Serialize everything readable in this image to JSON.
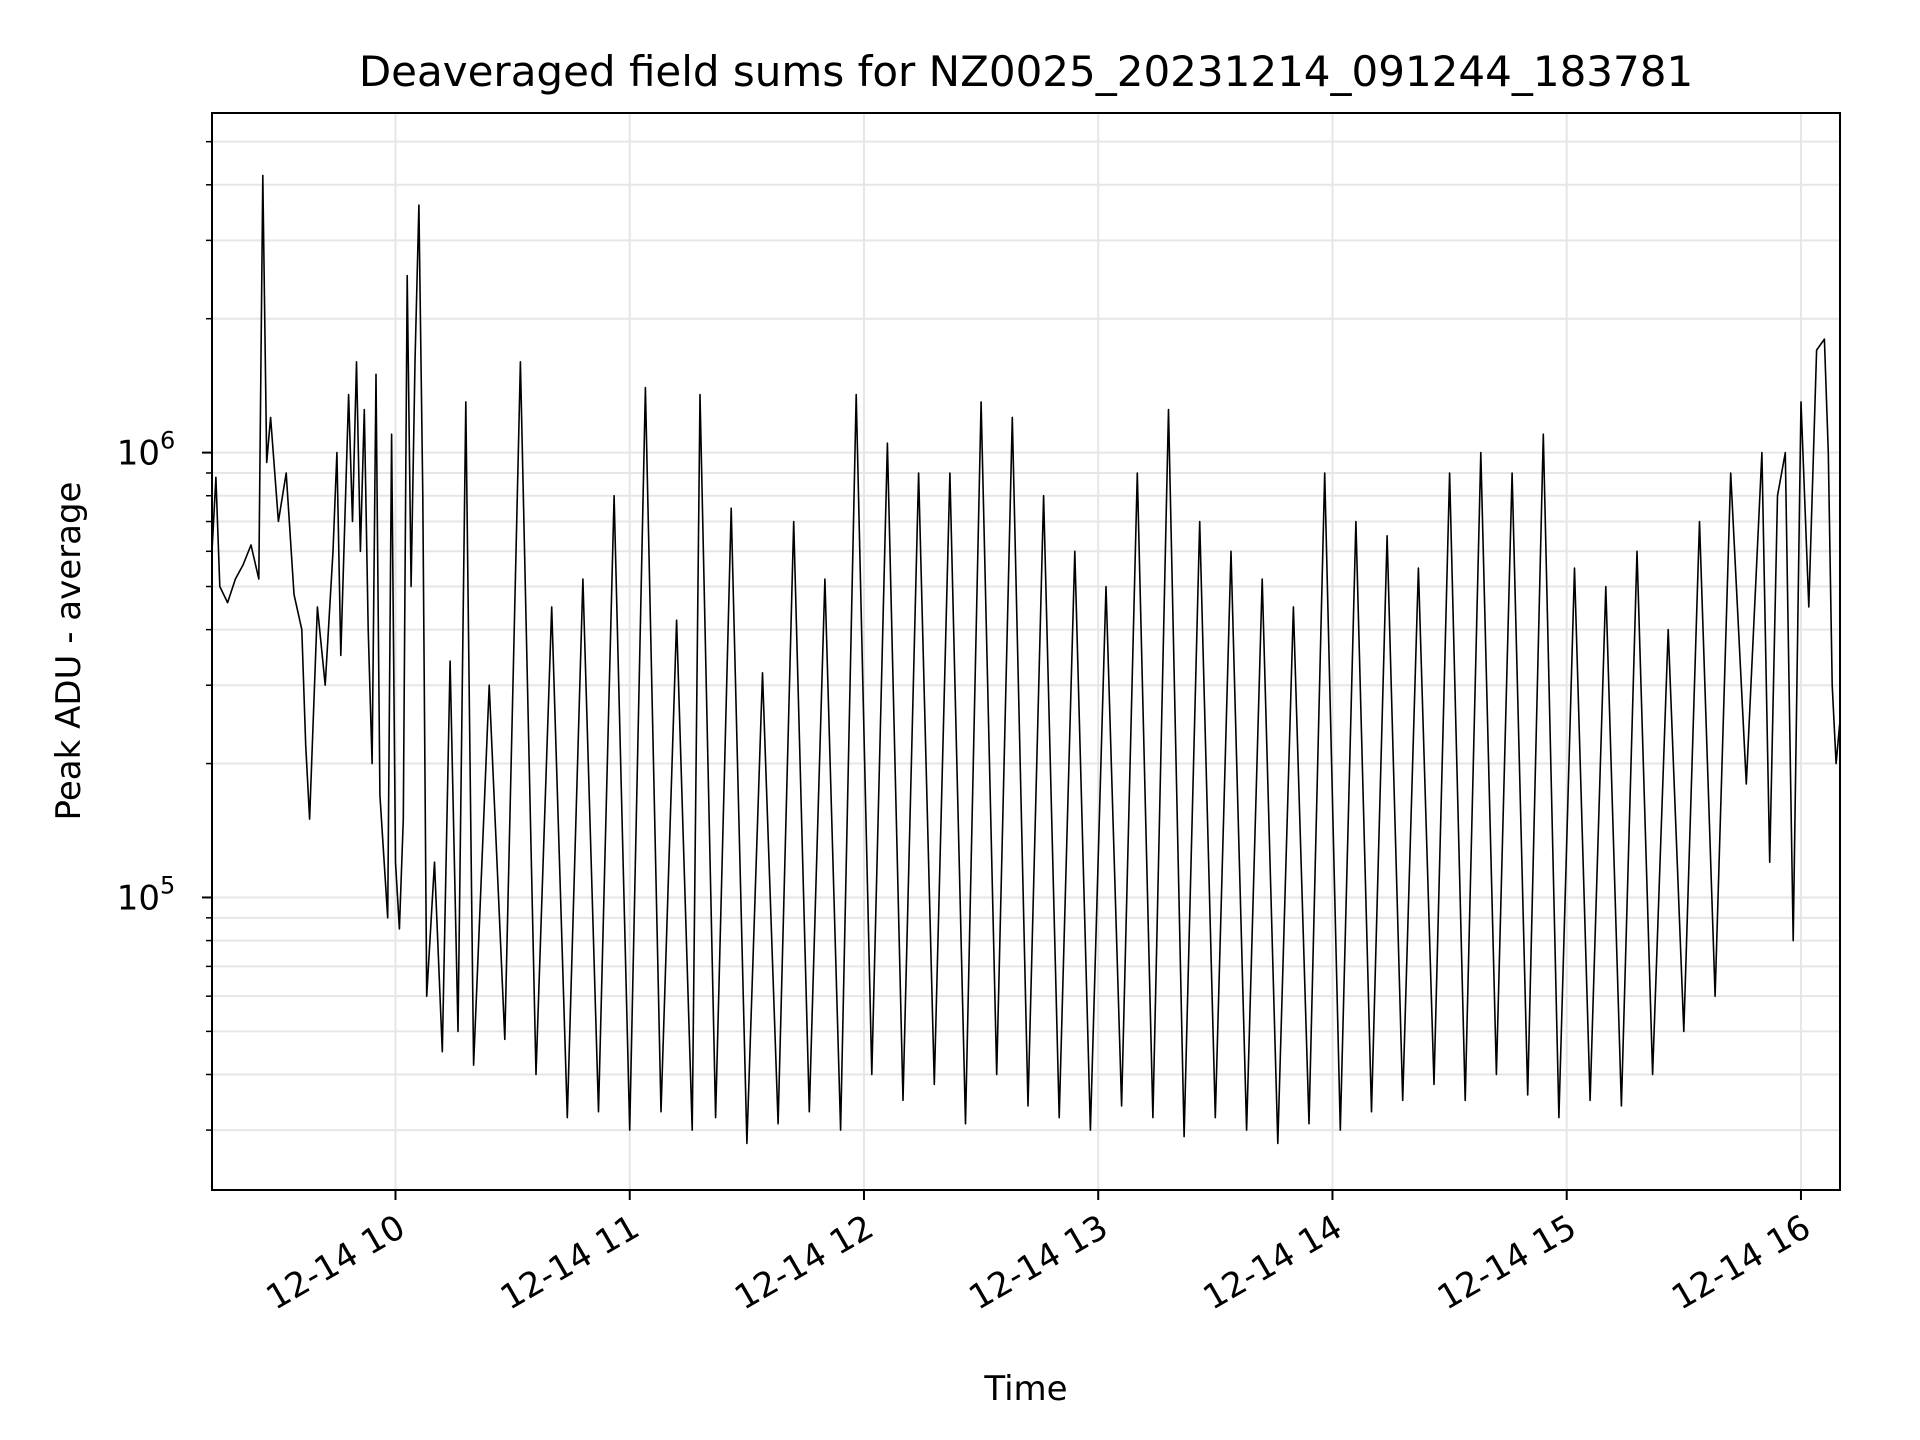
{
  "chart_data": {
    "type": "line",
    "title": "Deaveraged field sums for NZ0025_20231214_091244_183781",
    "xlabel": "Time",
    "ylabel": "Peak ADU - average",
    "yscale": "log",
    "ylim": [
      22000,
      5800000
    ],
    "xlim": [
      "12-14 09:13",
      "12-14 16:10"
    ],
    "grid": true,
    "line_color": "#000000",
    "grid_color": "#e6e6e6",
    "x_ticks": [
      "12-14 10",
      "12-14 11",
      "12-14 12",
      "12-14 13",
      "12-14 14",
      "12-14 15",
      "12-14 16"
    ],
    "y_ticks": [
      "10^6",
      "10^5"
    ],
    "series": [
      {
        "points": [
          [
            "12-14 09:13",
            600000
          ],
          [
            "12-14 09:14",
            880000
          ],
          [
            "12-14 09:15",
            500000
          ],
          [
            "12-14 09:17",
            460000
          ],
          [
            "12-14 09:19",
            520000
          ],
          [
            "12-14 09:21",
            560000
          ],
          [
            "12-14 09:23",
            620000
          ],
          [
            "12-14 09:25",
            520000
          ],
          [
            "12-14 09:26",
            4200000
          ],
          [
            "12-14 09:27",
            950000
          ],
          [
            "12-14 09:28",
            1200000
          ],
          [
            "12-14 09:30",
            700000
          ],
          [
            "12-14 09:32",
            900000
          ],
          [
            "12-14 09:34",
            480000
          ],
          [
            "12-14 09:36",
            400000
          ],
          [
            "12-14 09:37",
            220000
          ],
          [
            "12-14 09:38",
            150000
          ],
          [
            "12-14 09:40",
            450000
          ],
          [
            "12-14 09:42",
            300000
          ],
          [
            "12-14 09:44",
            600000
          ],
          [
            "12-14 09:45",
            1000000
          ],
          [
            "12-14 09:46",
            350000
          ],
          [
            "12-14 09:48",
            1350000
          ],
          [
            "12-14 09:49",
            700000
          ],
          [
            "12-14 09:50",
            1600000
          ],
          [
            "12-14 09:51",
            600000
          ],
          [
            "12-14 09:52",
            1250000
          ],
          [
            "12-14 09:53",
            400000
          ],
          [
            "12-14 09:54",
            200000
          ],
          [
            "12-14 09:55",
            1500000
          ],
          [
            "12-14 09:56",
            170000
          ],
          [
            "12-14 09:58",
            90000
          ],
          [
            "12-14 09:59",
            1100000
          ],
          [
            "12-14 10:00",
            120000
          ],
          [
            "12-14 10:01",
            85000
          ],
          [
            "12-14 10:02",
            150000
          ],
          [
            "12-14 10:03",
            2500000
          ],
          [
            "12-14 10:04",
            500000
          ],
          [
            "12-14 10:05",
            1600000
          ],
          [
            "12-14 10:06",
            3600000
          ],
          [
            "12-14 10:07",
            800000
          ],
          [
            "12-14 10:08",
            60000
          ],
          [
            "12-14 10:10",
            120000
          ],
          [
            "12-14 10:12",
            45000
          ],
          [
            "12-14 10:14",
            340000
          ],
          [
            "12-14 10:16",
            50000
          ],
          [
            "12-14 10:18",
            1300000
          ],
          [
            "12-14 10:20",
            42000
          ],
          [
            "12-14 10:24",
            300000
          ],
          [
            "12-14 10:28",
            48000
          ],
          [
            "12-14 10:32",
            1600000
          ],
          [
            "12-14 10:36",
            40000
          ],
          [
            "12-14 10:40",
            450000
          ],
          [
            "12-14 10:44",
            32000
          ],
          [
            "12-14 10:48",
            520000
          ],
          [
            "12-14 10:52",
            33000
          ],
          [
            "12-14 10:56",
            800000
          ],
          [
            "12-14 11:00",
            30000
          ],
          [
            "12-14 11:04",
            1400000
          ],
          [
            "12-14 11:08",
            33000
          ],
          [
            "12-14 11:12",
            420000
          ],
          [
            "12-14 11:16",
            30000
          ],
          [
            "12-14 11:18",
            1350000
          ],
          [
            "12-14 11:22",
            32000
          ],
          [
            "12-14 11:26",
            750000
          ],
          [
            "12-14 11:30",
            28000
          ],
          [
            "12-14 11:34",
            320000
          ],
          [
            "12-14 11:38",
            31000
          ],
          [
            "12-14 11:42",
            700000
          ],
          [
            "12-14 11:46",
            33000
          ],
          [
            "12-14 11:50",
            520000
          ],
          [
            "12-14 11:54",
            30000
          ],
          [
            "12-14 11:58",
            1350000
          ],
          [
            "12-14 12:02",
            40000
          ],
          [
            "12-14 12:06",
            1050000
          ],
          [
            "12-14 12:10",
            35000
          ],
          [
            "12-14 12:14",
            900000
          ],
          [
            "12-14 12:18",
            38000
          ],
          [
            "12-14 12:22",
            900000
          ],
          [
            "12-14 12:26",
            31000
          ],
          [
            "12-14 12:30",
            1300000
          ],
          [
            "12-14 12:34",
            40000
          ],
          [
            "12-14 12:38",
            1200000
          ],
          [
            "12-14 12:42",
            34000
          ],
          [
            "12-14 12:46",
            800000
          ],
          [
            "12-14 12:50",
            32000
          ],
          [
            "12-14 12:54",
            600000
          ],
          [
            "12-14 12:58",
            30000
          ],
          [
            "12-14 13:02",
            500000
          ],
          [
            "12-14 13:06",
            34000
          ],
          [
            "12-14 13:10",
            900000
          ],
          [
            "12-14 13:14",
            32000
          ],
          [
            "12-14 13:18",
            1250000
          ],
          [
            "12-14 13:22",
            29000
          ],
          [
            "12-14 13:26",
            700000
          ],
          [
            "12-14 13:30",
            32000
          ],
          [
            "12-14 13:34",
            600000
          ],
          [
            "12-14 13:38",
            30000
          ],
          [
            "12-14 13:42",
            520000
          ],
          [
            "12-14 13:46",
            28000
          ],
          [
            "12-14 13:50",
            450000
          ],
          [
            "12-14 13:54",
            31000
          ],
          [
            "12-14 13:58",
            900000
          ],
          [
            "12-14 14:02",
            30000
          ],
          [
            "12-14 14:06",
            700000
          ],
          [
            "12-14 14:10",
            33000
          ],
          [
            "12-14 14:14",
            650000
          ],
          [
            "12-14 14:18",
            35000
          ],
          [
            "12-14 14:22",
            550000
          ],
          [
            "12-14 14:26",
            38000
          ],
          [
            "12-14 14:30",
            900000
          ],
          [
            "12-14 14:34",
            35000
          ],
          [
            "12-14 14:38",
            1000000
          ],
          [
            "12-14 14:42",
            40000
          ],
          [
            "12-14 14:46",
            900000
          ],
          [
            "12-14 14:50",
            36000
          ],
          [
            "12-14 14:54",
            1100000
          ],
          [
            "12-14 14:58",
            32000
          ],
          [
            "12-14 15:02",
            550000
          ],
          [
            "12-14 15:06",
            35000
          ],
          [
            "12-14 15:10",
            500000
          ],
          [
            "12-14 15:14",
            34000
          ],
          [
            "12-14 15:18",
            600000
          ],
          [
            "12-14 15:22",
            40000
          ],
          [
            "12-14 15:26",
            400000
          ],
          [
            "12-14 15:30",
            50000
          ],
          [
            "12-14 15:34",
            700000
          ],
          [
            "12-14 15:38",
            60000
          ],
          [
            "12-14 15:42",
            900000
          ],
          [
            "12-14 15:46",
            180000
          ],
          [
            "12-14 15:50",
            1000000
          ],
          [
            "12-14 15:52",
            120000
          ],
          [
            "12-14 15:54",
            800000
          ],
          [
            "12-14 15:56",
            1000000
          ],
          [
            "12-14 15:58",
            80000
          ],
          [
            "12-14 16:00",
            1300000
          ],
          [
            "12-14 16:02",
            450000
          ],
          [
            "12-14 16:04",
            1700000
          ],
          [
            "12-14 16:06",
            1800000
          ],
          [
            "12-14 16:07",
            1000000
          ],
          [
            "12-14 16:08",
            300000
          ],
          [
            "12-14 16:09",
            200000
          ],
          [
            "12-14 16:10",
            250000
          ]
        ]
      }
    ]
  }
}
